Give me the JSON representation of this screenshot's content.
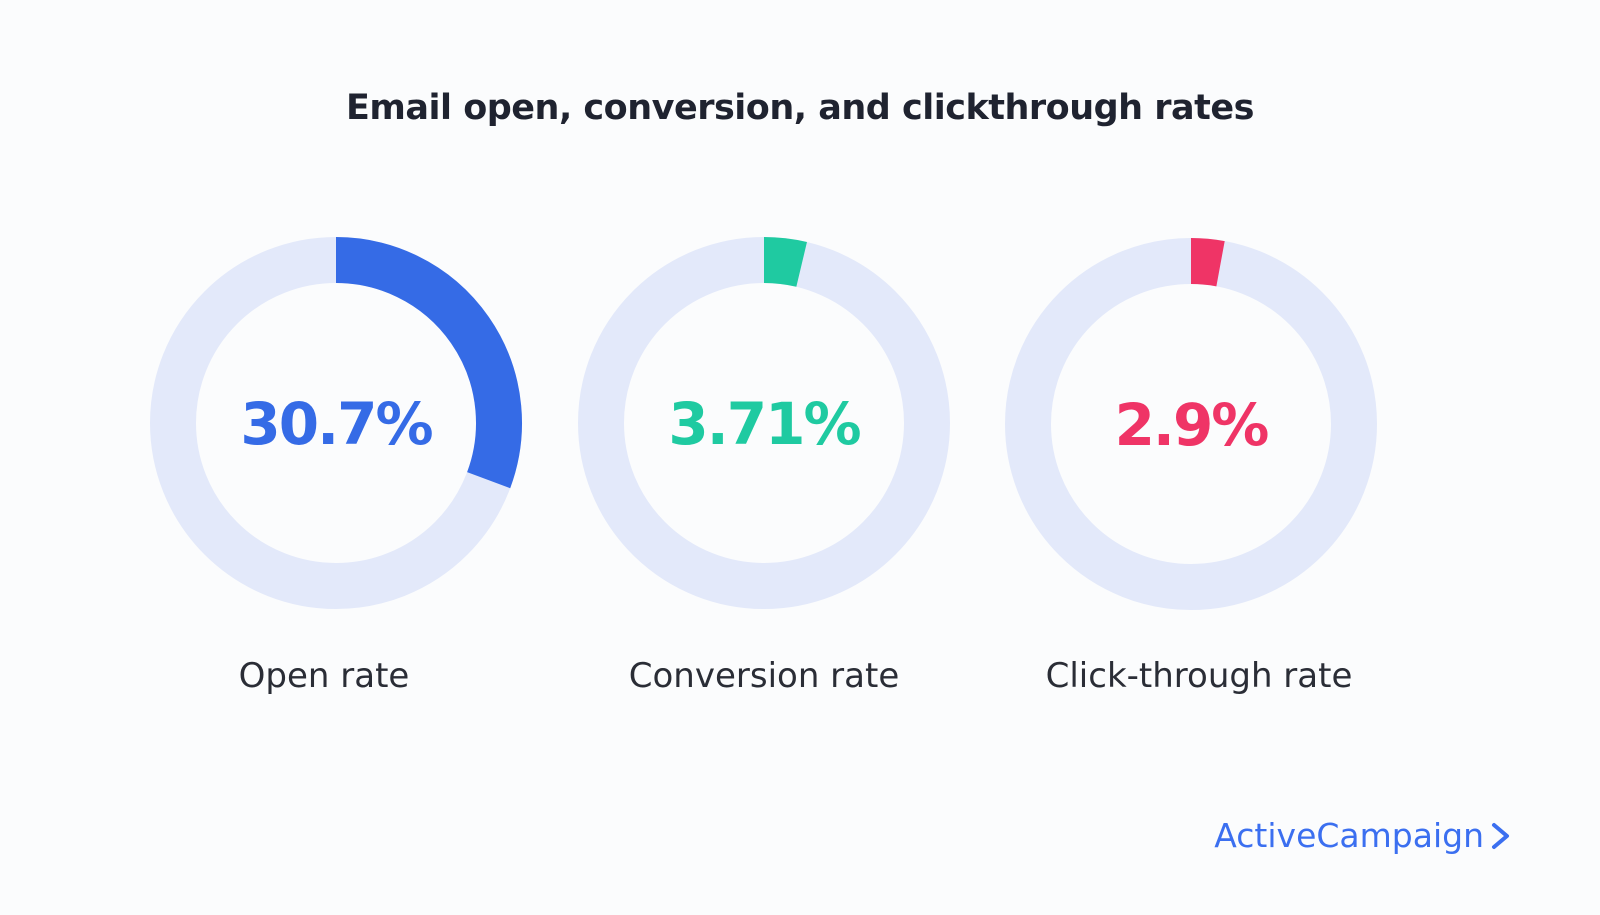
{
  "chart_data": {
    "type": "pie",
    "title": "Email open, conversion, and clickthrough rates",
    "track_color": "#e3e9fa",
    "series": [
      {
        "name": "Open rate",
        "value": 30.7,
        "display": "30.7%",
        "color": "#356be6"
      },
      {
        "name": "Conversion rate",
        "value": 3.71,
        "display": "3.71%",
        "color": "#1fcaa1"
      },
      {
        "name": "Click-through rate",
        "value": 2.9,
        "display": "2.9%",
        "color": "#ef3466"
      }
    ]
  },
  "brand": {
    "name": "ActiveCampaign",
    "icon": "chevron-right-icon",
    "color": "#3b6ff0"
  }
}
